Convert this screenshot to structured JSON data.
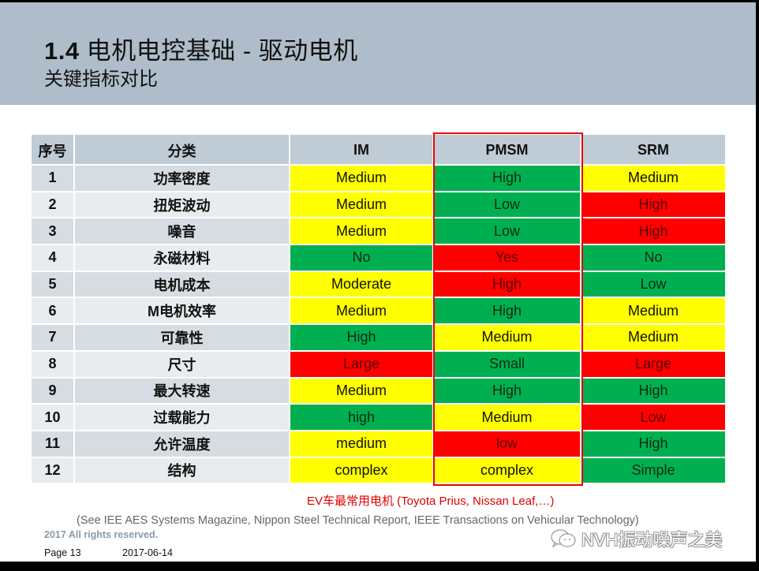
{
  "header": {
    "title_number": "1.4",
    "title_text": "电机电控基础 - 驱动电机",
    "subtitle": "关键指标对比"
  },
  "table": {
    "columns": [
      "序号",
      "分类",
      "IM",
      "PMSM",
      "SRM"
    ],
    "rows": [
      {
        "idx": "1",
        "category": "功率密度",
        "im": "Medium",
        "pmsm": "High",
        "srm": "Medium"
      },
      {
        "idx": "2",
        "category": "扭矩波动",
        "im": "Medium",
        "pmsm": "Low",
        "srm": "High"
      },
      {
        "idx": "3",
        "category": "噪音",
        "im": "Medium",
        "pmsm": "Low",
        "srm": "High"
      },
      {
        "idx": "4",
        "category": "永磁材料",
        "im": "No",
        "pmsm": "Yes",
        "srm": "No"
      },
      {
        "idx": "5",
        "category": "电机成本",
        "im": "Moderate",
        "pmsm": "High",
        "srm": "Low"
      },
      {
        "idx": "6",
        "category": "M电机效率",
        "im": "Medium",
        "pmsm": "High",
        "srm": "Medium"
      },
      {
        "idx": "7",
        "category": "可靠性",
        "im": "High",
        "pmsm": "Medium",
        "srm": "Medium"
      },
      {
        "idx": "8",
        "category": "尺寸",
        "im": "Large",
        "pmsm": "Small",
        "srm": "Large"
      },
      {
        "idx": "9",
        "category": "最大转速",
        "im": "Medium",
        "pmsm": "High",
        "srm": "High"
      },
      {
        "idx": "10",
        "category": "过载能力",
        "im": "high",
        "pmsm": "Medium",
        "srm": "Low"
      },
      {
        "idx": "11",
        "category": "允许温度",
        "im": "medium",
        "pmsm": "low",
        "srm": "High"
      },
      {
        "idx": "12",
        "category": "结构",
        "im": "complex",
        "pmsm": "complex",
        "srm": "Simple"
      }
    ],
    "cell_colors": [
      [
        "yellow",
        "green",
        "yellow"
      ],
      [
        "yellow",
        "green",
        "red"
      ],
      [
        "yellow",
        "green",
        "red"
      ],
      [
        "green",
        "red",
        "green"
      ],
      [
        "yellow",
        "red",
        "green"
      ],
      [
        "yellow",
        "green",
        "yellow"
      ],
      [
        "green",
        "yellow",
        "yellow"
      ],
      [
        "red",
        "green",
        "red"
      ],
      [
        "yellow",
        "green",
        "green"
      ],
      [
        "green",
        "yellow",
        "red"
      ],
      [
        "yellow",
        "red",
        "green"
      ],
      [
        "yellow",
        "yellow",
        "green"
      ]
    ],
    "highlighted_column": "PMSM"
  },
  "colors": {
    "header_band": "#aebdc9",
    "yellow": "#ffff00",
    "green": "#00b050",
    "red": "#ff0000",
    "highlight_frame": "#e60000"
  },
  "notes": {
    "ev_note": "EV车最常用电机 (Toyota Prius, Nissan Leaf,…)",
    "reference": "(See IEE AES Systems Magazine, Nippon Steel Technical Report, IEEE Transactions on Vehicular Technology)"
  },
  "footer": {
    "copyright": "2017 All rights reserved.",
    "page": "Page 13",
    "date": "2017-06-14"
  },
  "watermark": {
    "icon": "wechat-icon",
    "text": "NVH振动噪声之美"
  }
}
